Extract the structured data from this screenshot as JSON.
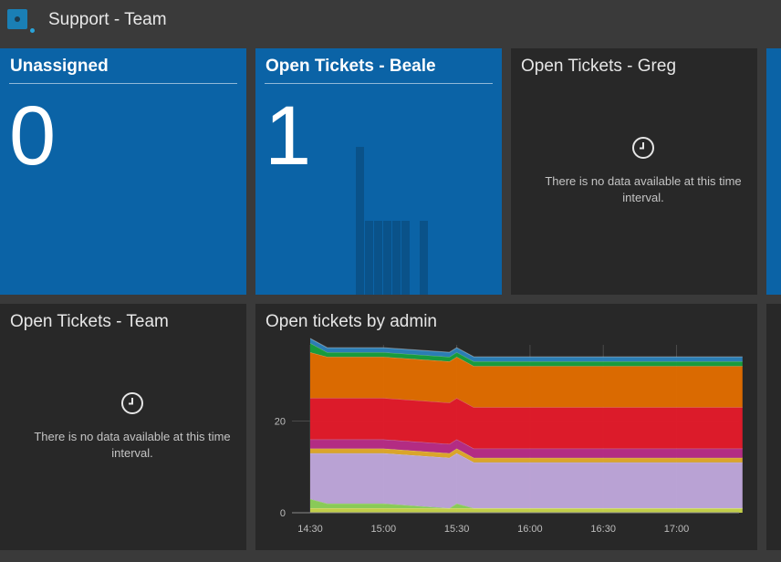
{
  "app": {
    "title": "Support - Team"
  },
  "tiles": {
    "unassigned": {
      "title": "Unassigned",
      "value": "0",
      "color": "#0b63a6"
    },
    "beale": {
      "title": "Open Tickets - Beale",
      "value": "1",
      "color": "#0b63a6"
    },
    "greg": {
      "title": "Open Tickets - Greg",
      "message": "There is no data available at this time interval.",
      "icon": "clock-icon"
    },
    "team": {
      "title": "Open Tickets - Team",
      "message": "There is no data available at this time interval.",
      "icon": "clock-icon"
    },
    "admin_chart": {
      "title": "Open tickets by admin"
    }
  },
  "chart_data": {
    "type": "area",
    "stacked": true,
    "title": "Open tickets by admin",
    "x": [
      "14:30",
      "14:37",
      "15:00",
      "15:27",
      "15:30",
      "15:37",
      "16:00",
      "16:30",
      "17:00",
      "17:27"
    ],
    "x_ticks": [
      "14:30",
      "15:00",
      "15:30",
      "16:00",
      "16:30",
      "17:00"
    ],
    "y_ticks": [
      0,
      20
    ],
    "ylim": [
      0,
      38
    ],
    "grid": true,
    "series": [
      {
        "color": "#c6d34a",
        "values": [
          1,
          1,
          1,
          1,
          1,
          1,
          1,
          1,
          1,
          1
        ]
      },
      {
        "color": "#8ccf5a",
        "values": [
          2,
          1,
          1,
          0,
          1,
          0,
          0,
          0,
          0,
          0
        ]
      },
      {
        "color": "#bea6da",
        "values": [
          10,
          11,
          11,
          11,
          11,
          10,
          10,
          10,
          10,
          10
        ]
      },
      {
        "color": "#e0a92a",
        "values": [
          1,
          1,
          1,
          1,
          1,
          1,
          1,
          1,
          1,
          1
        ]
      },
      {
        "color": "#b82c86",
        "values": [
          2,
          2,
          2,
          2,
          2,
          2,
          2,
          2,
          2,
          2
        ]
      },
      {
        "color": "#e21b2a",
        "values": [
          9,
          9,
          9,
          9,
          9,
          9,
          9,
          9,
          9,
          9
        ]
      },
      {
        "color": "#e06c00",
        "values": [
          10,
          9,
          9,
          9,
          9,
          9,
          9,
          9,
          9,
          9
        ]
      },
      {
        "color": "#189f3e",
        "values": [
          2,
          1,
          1,
          1,
          1,
          1,
          1,
          1,
          1,
          1
        ]
      },
      {
        "color": "#2b80b9",
        "values": [
          1,
          1,
          1,
          1,
          1,
          1,
          1,
          1,
          1,
          1
        ]
      }
    ]
  },
  "beale_sparkline": {
    "values": [
      2,
      1,
      1,
      1,
      1,
      1,
      0,
      1
    ]
  }
}
